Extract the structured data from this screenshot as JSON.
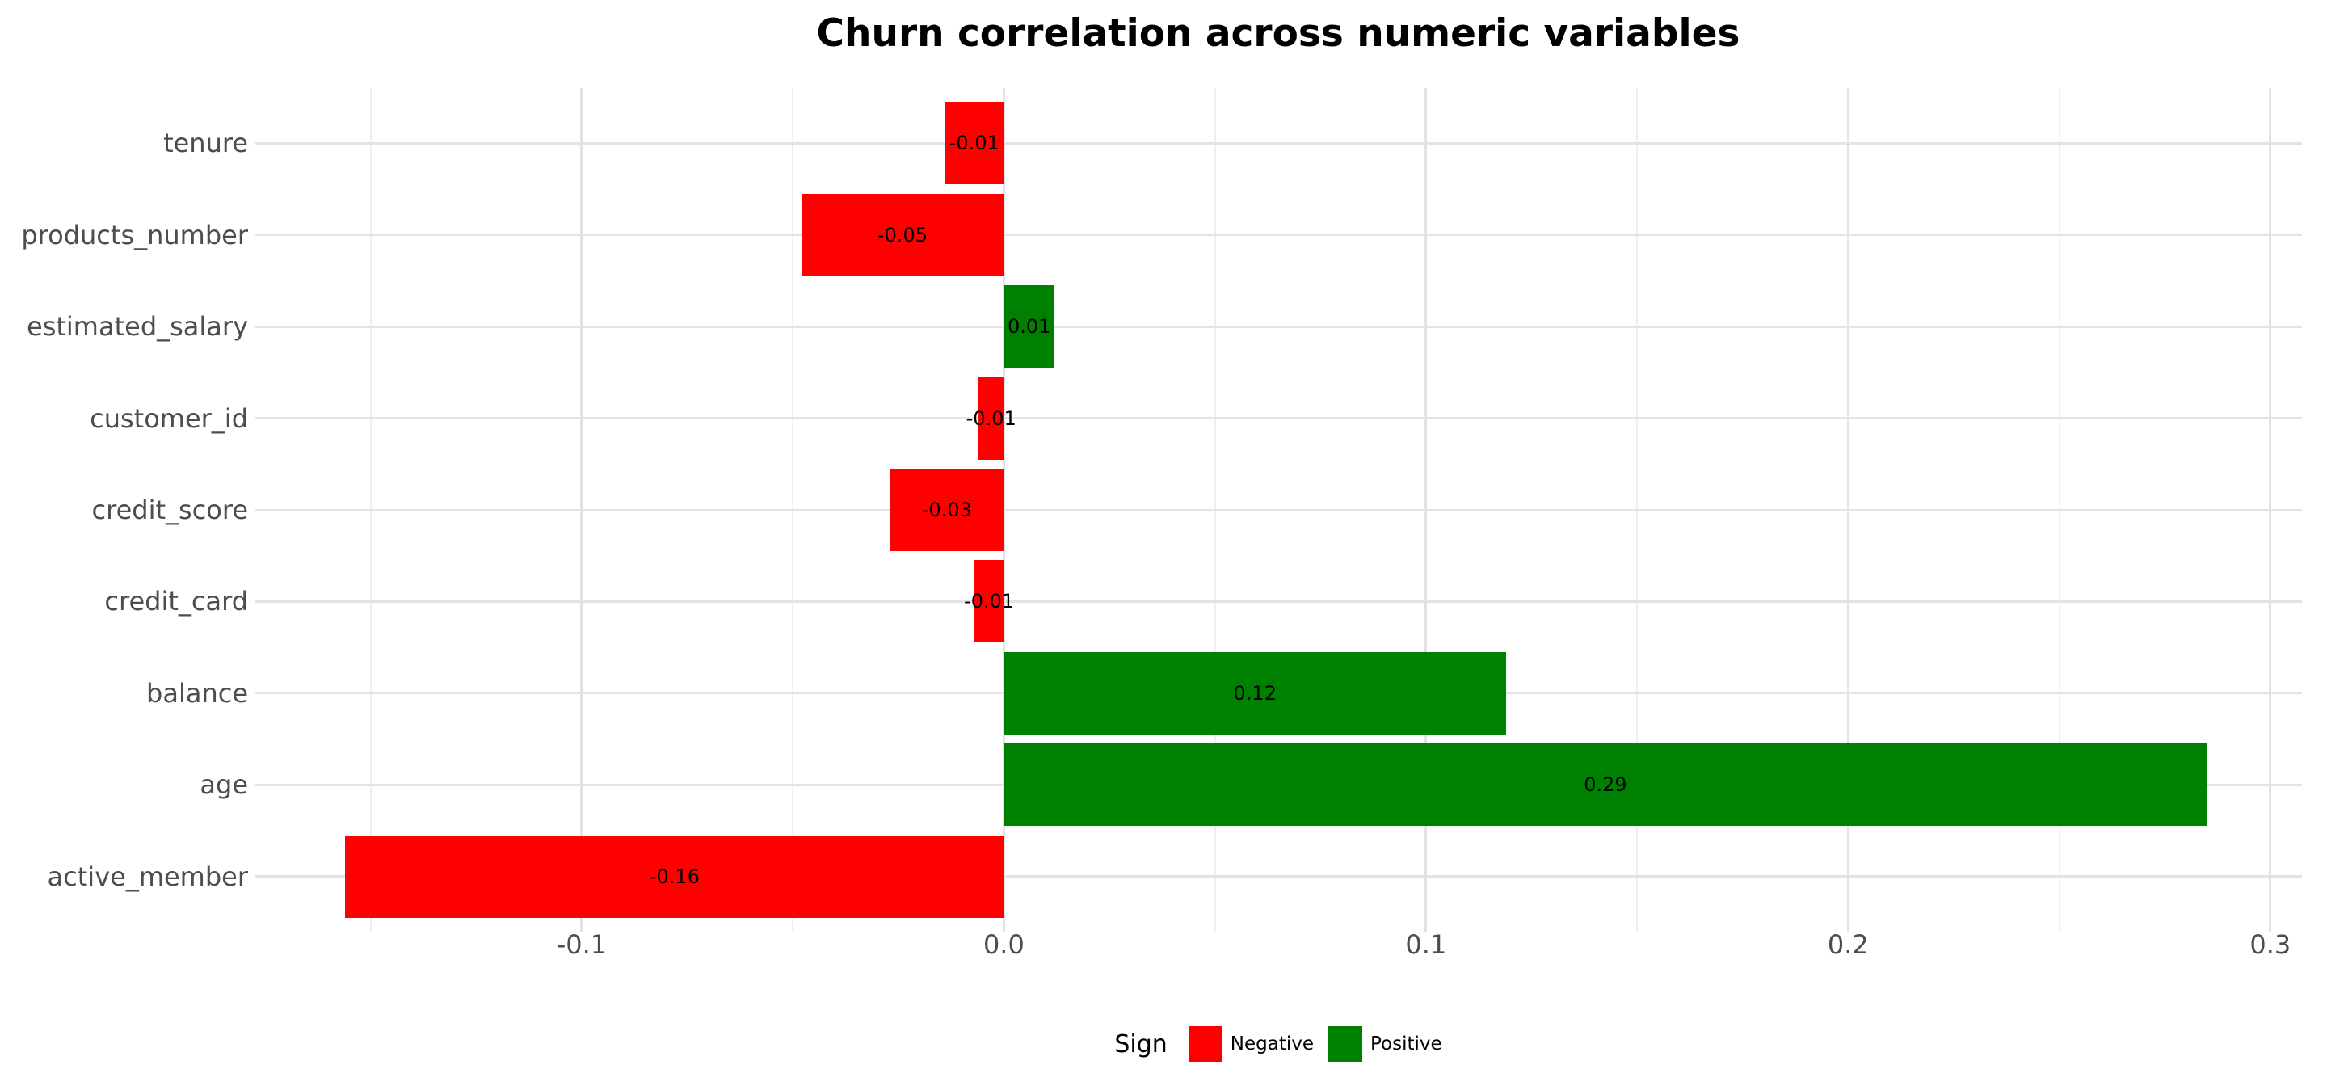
{
  "chart_data": {
    "type": "bar",
    "orientation": "horizontal",
    "title": "Churn correlation across numeric variables",
    "xlabel": "",
    "ylabel": "",
    "categories_top_to_bottom": [
      "tenure",
      "products_number",
      "estimated_salary",
      "customer_id",
      "credit_score",
      "credit_card",
      "balance",
      "age",
      "active_member"
    ],
    "values": [
      -0.014,
      -0.048,
      0.012,
      -0.006,
      -0.027,
      -0.007,
      0.119,
      0.285,
      -0.156
    ],
    "bar_labels": [
      "-0.01",
      "-0.05",
      "0.01",
      "-0.01",
      "-0.03",
      "-0.01",
      "0.12",
      "0.29",
      "-0.16"
    ],
    "x_axis": {
      "range": [
        -0.1775,
        0.3075
      ],
      "major_ticks": [
        -0.1,
        0.0,
        0.1,
        0.2,
        0.3
      ],
      "major_tick_labels": [
        "-0.1",
        "0.0",
        "0.1",
        "0.2",
        "0.3"
      ],
      "minor_ticks": [
        -0.15,
        -0.05,
        0.05,
        0.15,
        0.25
      ]
    },
    "grid": true,
    "legend": {
      "position": "bottom",
      "title": "Sign",
      "entries": [
        {
          "label": "Negative",
          "color": "#ff0000"
        },
        {
          "label": "Positive",
          "color": "#008000"
        }
      ]
    },
    "colors": {
      "negative": "#ff0000",
      "positive": "#008000",
      "grid_major": "#e3e3e3",
      "grid_minor": "#efefef",
      "axis_text": "#4d4d4d",
      "title_text": "#000000",
      "background": "#ffffff"
    }
  }
}
